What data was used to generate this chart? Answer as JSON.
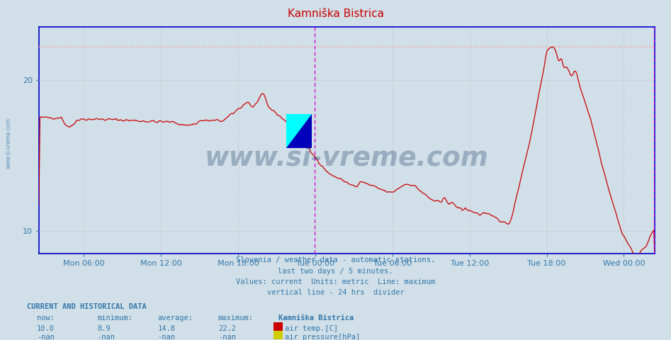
{
  "title": "Kamniška Bistrica",
  "title_color": "#cc0000",
  "bg_color": "#d0dfe8",
  "plot_bg_color": "#d0dfe8",
  "line_color": "#cc0000",
  "max_dotted_color": "#ff9999",
  "grid_color": "#aaaacc",
  "axis_color": "#0000cc",
  "text_color": "#3377aa",
  "ylim": [
    8.5,
    23.5
  ],
  "yticks": [
    10,
    20
  ],
  "xlabel_ticks": [
    "Mon 06:00",
    "Mon 12:00",
    "Mon 18:00",
    "Tue 00:00",
    "Tue 06:00",
    "Tue 12:00",
    "Tue 18:00",
    "Wed 00:00"
  ],
  "max_value": 22.2,
  "vline_color": "#dd00dd",
  "footer_lines": [
    "Slovenia / weather data - automatic stations.",
    "last two days / 5 minutes.",
    "Values: current  Units: metric  Line: maximum",
    "vertical line - 24 hrs  divider"
  ],
  "current_label": "CURRENT AND HISTORICAL DATA",
  "col_headers": [
    "now:",
    "minimum:",
    "average:",
    "maximum:",
    "Kamniška Bistrica"
  ],
  "row1": [
    "10.0",
    "8.9",
    "14.8",
    "22.2",
    "air temp.[C]"
  ],
  "row2": [
    "-nan",
    "-nan",
    "-nan",
    "-nan",
    "air pressure[hPa]"
  ],
  "legend_colors": [
    "#cc0000",
    "#cccc00"
  ],
  "watermark_text": "www.si-vreme.com",
  "watermark_color": "#1a3a6a",
  "watermark_alpha": 0.3,
  "sidebar_text": "www.si-vreme.com"
}
